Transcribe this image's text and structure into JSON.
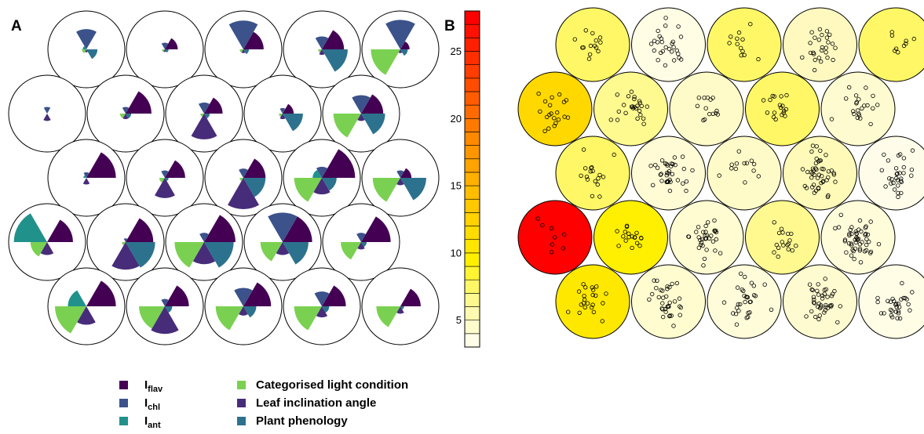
{
  "panels": {
    "a_label": "A",
    "b_label": "B"
  },
  "colors": {
    "I_flav": "#440154",
    "I_chl": "#3b528b",
    "I_ant": "#21918c",
    "light": "#7ad151",
    "leaf": "#472c7a",
    "pheno": "#2c728e"
  },
  "chart_data": [
    {
      "type": "pie",
      "subtype": "self-organizing-map-fan-charts",
      "grid": {
        "rows": 5,
        "cols": 5,
        "layout": "hexagonal"
      },
      "variables": [
        "I_flav",
        "I_chl",
        "I_ant",
        "light",
        "leaf",
        "pheno"
      ],
      "sector_start_angles_deg": [
        0,
        60,
        120,
        180,
        240,
        300
      ],
      "radius_scale_max": 1.0,
      "values": [
        [
          [
            0.0,
            0.55,
            0.1,
            0.12,
            0.08,
            0.3
          ],
          [
            0.35,
            0.18,
            0.0,
            0.08,
            0.07,
            0.1
          ],
          [
            0.55,
            0.78,
            0.0,
            0.1,
            0.1,
            0.15
          ],
          [
            0.6,
            0.35,
            0.0,
            0.1,
            0.15,
            0.7
          ],
          [
            0.25,
            0.8,
            0.0,
            0.8,
            0.1,
            0.2
          ]
        ],
        [
          [
            0.0,
            0.18,
            0.0,
            0.0,
            0.2,
            0.0
          ],
          [
            0.7,
            0.18,
            0.0,
            0.15,
            0.15,
            0.15
          ],
          [
            0.5,
            0.3,
            0.0,
            0.1,
            0.7,
            0.15
          ],
          [
            0.3,
            0.15,
            0.0,
            0.1,
            0.15,
            0.55
          ],
          [
            0.6,
            0.5,
            0.0,
            0.75,
            0.2,
            0.65
          ]
        ],
        [
          [
            0.8,
            0.15,
            0.08,
            0.0,
            0.18,
            0.0
          ],
          [
            0.55,
            0.2,
            0.0,
            0.15,
            0.55,
            0.1
          ],
          [
            0.6,
            0.25,
            0.0,
            0.1,
            0.85,
            0.6
          ],
          [
            0.9,
            0.3,
            0.25,
            0.75,
            0.45,
            0.4
          ],
          [
            0.3,
            0.2,
            0.0,
            0.75,
            0.2,
            0.7
          ]
        ],
        [
          [
            0.7,
            0.0,
            0.9,
            0.45,
            0.35,
            0.0
          ],
          [
            0.75,
            0.1,
            0.0,
            0.1,
            0.75,
            0.8
          ],
          [
            0.85,
            0.25,
            0.0,
            0.8,
            0.6,
            0.8
          ],
          [
            0.8,
            0.8,
            0.0,
            0.6,
            0.35,
            0.7
          ],
          [
            0.8,
            0.25,
            0.0,
            0.55,
            0.2,
            0.15
          ]
        ],
        [
          [
            0.8,
            0.0,
            0.5,
            0.85,
            0.5,
            0.0
          ],
          [
            0.65,
            0.2,
            0.0,
            0.7,
            0.75,
            0.2
          ],
          [
            0.75,
            0.5,
            0.0,
            0.75,
            0.25,
            0.35
          ],
          [
            0.65,
            0.4,
            0.0,
            0.75,
            0.3,
            0.2
          ],
          [
            0.55,
            0.0,
            0.0,
            0.65,
            0.2,
            0.1
          ]
        ]
      ],
      "legend": [
        {
          "key": "I_flav",
          "label_main": "I",
          "label_sub": "flav"
        },
        {
          "key": "I_chl",
          "label_main": "I",
          "label_sub": "chl"
        },
        {
          "key": "I_ant",
          "label_main": "I",
          "label_sub": "ant"
        },
        {
          "key": "light",
          "label_main": "Categorised light condition",
          "label_sub": ""
        },
        {
          "key": "leaf",
          "label_main": "Leaf inclination angle",
          "label_sub": ""
        },
        {
          "key": "pheno",
          "label_main": "Plant phenology",
          "label_sub": ""
        }
      ],
      "legend_placement": "bottom"
    },
    {
      "type": "scatter",
      "subtype": "self-organizing-map-counts",
      "grid": {
        "rows": 5,
        "cols": 5,
        "layout": "hexagonal"
      },
      "colorbar": {
        "min": 3,
        "max": 28,
        "levels": 25,
        "ticks": [
          5,
          10,
          15,
          20,
          25
        ],
        "colors": [
          "#fffde7",
          "#fffccc",
          "#fffab0",
          "#fff88f",
          "#fff766",
          "#fff533",
          "#ffef00",
          "#ffe600",
          "#ffdc00",
          "#ffd200",
          "#ffc800",
          "#ffbd00",
          "#ffb000",
          "#ffa300",
          "#ff9600",
          "#ff8900",
          "#ff7a00",
          "#ff6b00",
          "#ff5c00",
          "#ff4c00",
          "#ff3d00",
          "#ff2e00",
          "#ff2000",
          "#ff1000",
          "#ff0000"
        ]
      },
      "counts": [
        [
          14,
          27,
          12,
          26,
          9
        ],
        [
          20,
          25,
          14,
          18,
          22
        ],
        [
          17,
          35,
          13,
          45,
          30
        ],
        [
          8,
          18,
          33,
          18,
          50
        ],
        [
          22,
          34,
          30,
          40,
          30
        ]
      ],
      "cell_colors": [
        [
          "#fff766",
          "#fffde4",
          "#fff766",
          "#fff9c0",
          "#fff766"
        ],
        [
          "#ffd800",
          "#fffa90",
          "#fffbc8",
          "#fff766",
          "#fffbd0"
        ],
        [
          "#fff766",
          "#fffbd5",
          "#fffbc8",
          "#fffab8",
          "#fffde9"
        ],
        [
          "#ff0000",
          "#ffef00",
          "#fffcd2",
          "#fff990",
          "#fffcda"
        ],
        [
          "#ffe800",
          "#fffcd0",
          "#fffcda",
          "#fffbd0",
          "#fffde6"
        ]
      ]
    }
  ]
}
